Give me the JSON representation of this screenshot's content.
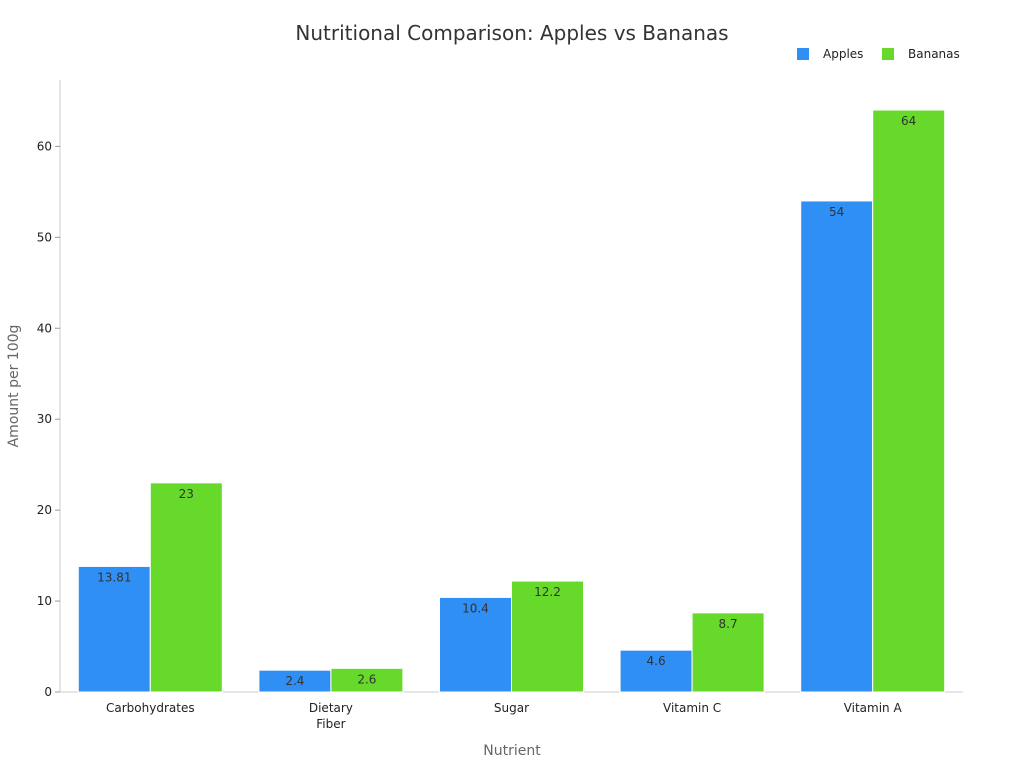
{
  "chart_data": {
    "type": "bar",
    "title": "Nutritional Comparison: Apples vs Bananas",
    "xlabel": "Nutrient",
    "ylabel": "Amount per 100g",
    "categories": [
      [
        "Carbohydrates"
      ],
      [
        "Dietary",
        "Fiber"
      ],
      [
        "Sugar"
      ],
      [
        "Vitamin C"
      ],
      [
        "Vitamin A"
      ]
    ],
    "series": [
      {
        "name": "Apples",
        "color": "#2f8ff5",
        "values": [
          13.81,
          2.4,
          10.4,
          4.6,
          54
        ],
        "labels": [
          "13.81",
          "2.4",
          "10.4",
          "4.6",
          "54"
        ]
      },
      {
        "name": "Bananas",
        "color": "#66d92a",
        "values": [
          23,
          2.6,
          12.2,
          8.7,
          64
        ],
        "labels": [
          "23",
          "2.6",
          "12.2",
          "8.7",
          "64"
        ]
      }
    ],
    "yticks": [
      0,
      10,
      20,
      30,
      40,
      50,
      60
    ],
    "ylim": [
      0,
      67.3
    ],
    "legend_position": "top-right",
    "grid": false
  }
}
